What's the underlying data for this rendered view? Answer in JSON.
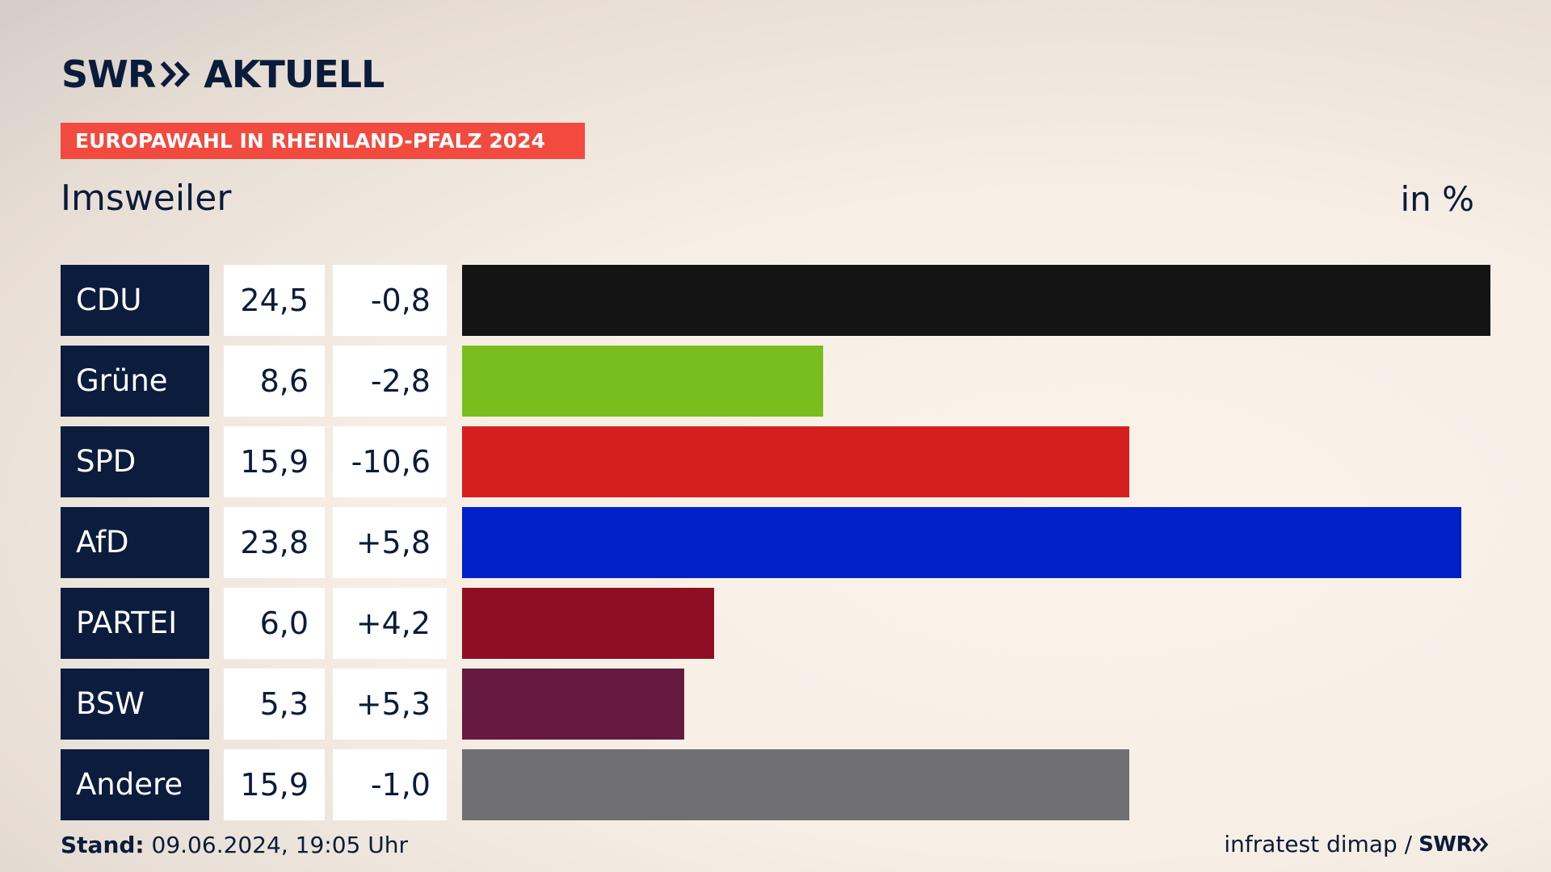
{
  "brand": {
    "logo_text": "SWR",
    "logo_suffix": "AKTUELL"
  },
  "banner": "EUROPAWAHL IN RHEINLAND-PFALZ 2024",
  "subtitle": "Imsweiler",
  "unit": "in %",
  "footer": {
    "stand_label": "Stand:",
    "stand_value": "09.06.2024, 19:05 Uhr",
    "source": "infratest dimap /",
    "source_brand": "SWR"
  },
  "chart_data": {
    "type": "bar",
    "orientation": "horizontal",
    "title": "EUROPAWAHL IN RHEINLAND-PFALZ 2024",
    "subtitle": "Imsweiler",
    "unit": "in %",
    "categories": [
      "CDU",
      "Grüne",
      "SPD",
      "AfD",
      "PARTEI",
      "BSW",
      "Andere"
    ],
    "values": [
      24.5,
      8.6,
      15.9,
      23.8,
      6.0,
      5.3,
      15.9
    ],
    "value_labels": [
      "24,5",
      "8,6",
      "15,9",
      "23,8",
      "6,0",
      "5,3",
      "15,9"
    ],
    "diff_labels": [
      "-0,8",
      "-2,8",
      "-10,6",
      "+5,8",
      "+4,2",
      "+5,3",
      "-1,0"
    ],
    "colors": [
      "#141414",
      "#78be1e",
      "#d51f1f",
      "#0021c8",
      "#8f0e21",
      "#661a40",
      "#707072"
    ],
    "xlim": [
      0,
      24.5
    ]
  }
}
